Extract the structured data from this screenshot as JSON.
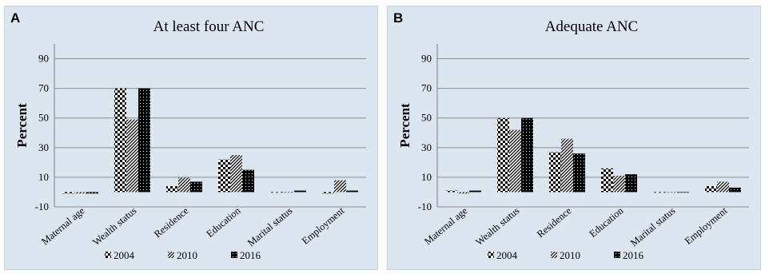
{
  "colors": {
    "panel_bg": "#dce6f1",
    "axis": "#7f7f7f",
    "grid": "#8c8c8c",
    "bars": "#000000"
  },
  "chart_data": [
    {
      "panel_label": "A",
      "type": "bar",
      "title": "At least four ANC",
      "ylabel": "Percent",
      "xlabel": "",
      "ylim": [
        -10,
        100
      ],
      "yticks": [
        -10,
        10,
        30,
        50,
        70,
        90
      ],
      "grid": true,
      "legend_position": "bottom",
      "categories": [
        "Maternal age",
        "Wealth status",
        "Residence",
        "Education",
        "Marital status",
        "Employment"
      ],
      "series": [
        {
          "name": "2004",
          "pattern": "checker",
          "values": [
            -1,
            70,
            4,
            22,
            0,
            -1
          ]
        },
        {
          "name": "2010",
          "pattern": "diagonal",
          "values": [
            -1,
            49,
            10,
            25,
            0,
            8
          ]
        },
        {
          "name": "2016",
          "pattern": "dense",
          "values": [
            -1,
            70,
            7,
            15,
            1,
            1
          ]
        }
      ]
    },
    {
      "panel_label": "B",
      "type": "bar",
      "title": "Adequate ANC",
      "ylabel": "Percent",
      "xlabel": "",
      "ylim": [
        -10,
        100
      ],
      "yticks": [
        -10,
        10,
        30,
        50,
        70,
        90
      ],
      "grid": true,
      "legend_position": "bottom",
      "categories": [
        "Maternal age",
        "Wealth status",
        "Residence",
        "Education",
        "Marital status",
        "Employment"
      ],
      "series": [
        {
          "name": "2004",
          "pattern": "checker",
          "values": [
            1,
            50,
            27,
            16,
            0,
            4
          ]
        },
        {
          "name": "2010",
          "pattern": "diagonal",
          "values": [
            -1,
            42,
            36,
            11,
            0,
            7
          ]
        },
        {
          "name": "2016",
          "pattern": "dense",
          "values": [
            1,
            50,
            26,
            12,
            0,
            3
          ]
        }
      ]
    }
  ]
}
